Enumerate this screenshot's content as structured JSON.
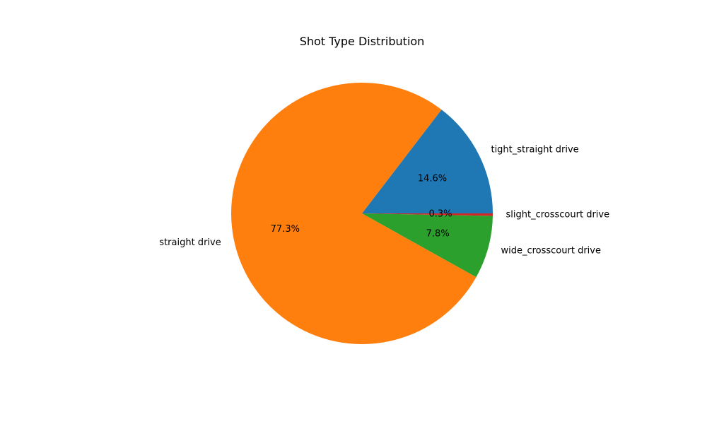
{
  "chart_data": {
    "type": "pie",
    "title": "Shot Type Distribution",
    "start_angle_deg": 0,
    "direction": "counterclockwise",
    "slices": [
      {
        "label": "tight_straight drive",
        "value": 14.6,
        "pct_label": "14.6%",
        "color": "#1f77b4"
      },
      {
        "label": "straight drive",
        "value": 77.3,
        "pct_label": "77.3%",
        "color": "#ff7f0e"
      },
      {
        "label": "wide_crosscourt drive",
        "value": 7.8,
        "pct_label": "7.8%",
        "color": "#2ca02c"
      },
      {
        "label": "slight_crosscourt drive",
        "value": 0.3,
        "pct_label": "0.3%",
        "color": "#d62728"
      }
    ]
  }
}
